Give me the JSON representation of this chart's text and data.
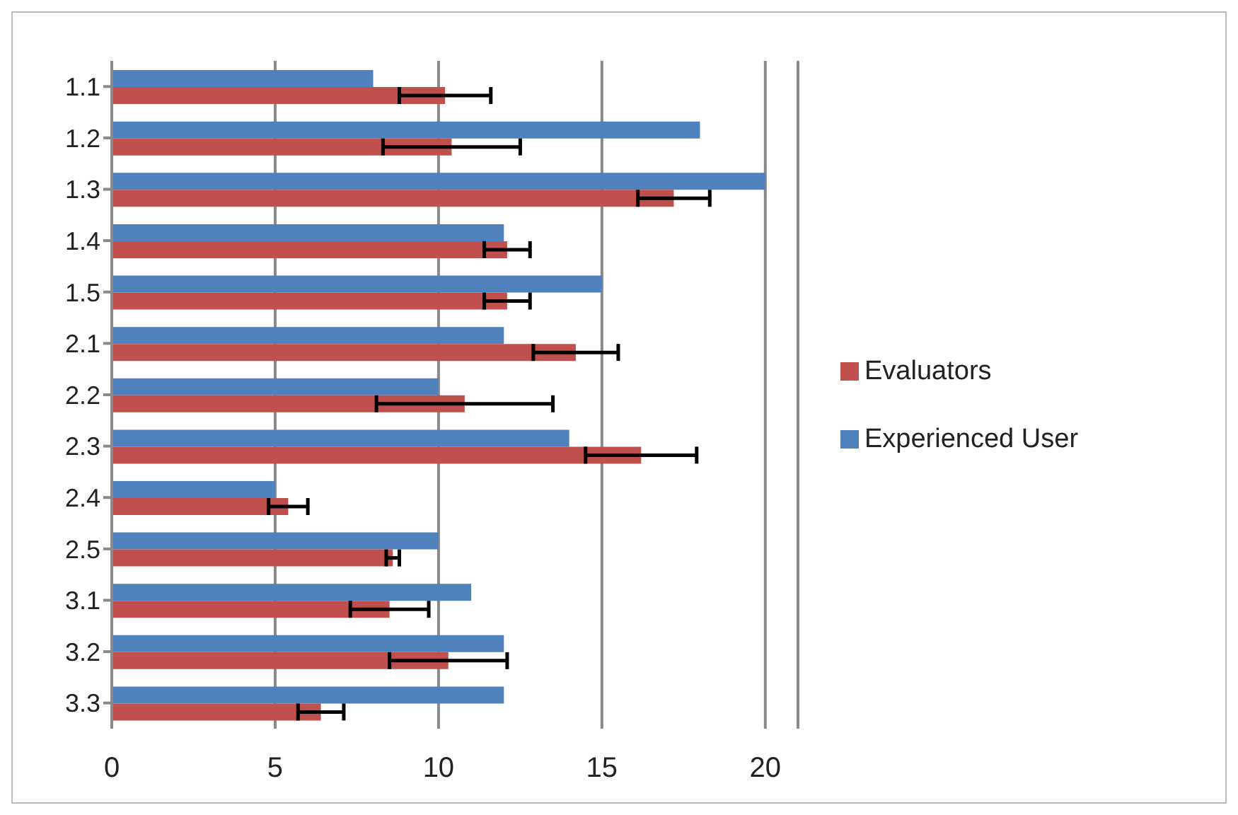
{
  "chart_data": {
    "type": "bar",
    "orientation": "horizontal",
    "categories": [
      "1.1",
      "1.2",
      "1.3",
      "1.4",
      "1.5",
      "2.1",
      "2.2",
      "2.3",
      "2.4",
      "2.5",
      "3.1",
      "3.2",
      "3.3"
    ],
    "series": [
      {
        "name": "Experienced User",
        "color": "#4f81bd",
        "values": [
          8,
          18,
          20,
          12,
          15,
          12,
          10,
          14,
          5,
          10,
          11,
          12,
          12
        ]
      },
      {
        "name": "Evaluators",
        "color": "#c0504d",
        "values": [
          10.2,
          10.4,
          17.2,
          12.1,
          12.1,
          14.2,
          10.8,
          16.2,
          5.4,
          8.6,
          8.5,
          10.3,
          6.4
        ],
        "errors": [
          1.4,
          2.1,
          1.1,
          0.7,
          0.7,
          1.3,
          2.7,
          1.7,
          0.6,
          0.2,
          1.2,
          1.8,
          0.7
        ]
      }
    ],
    "xlim": [
      0,
      21
    ],
    "xticks": [
      0,
      5,
      10,
      15,
      20
    ],
    "grid": "x",
    "legend": "right"
  }
}
